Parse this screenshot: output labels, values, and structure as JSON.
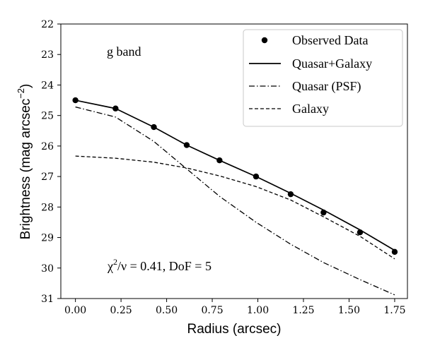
{
  "chart_data": {
    "type": "line",
    "xlabel": "Radius (arcsec)",
    "ylabel_main": "Brightness (mag arcsec",
    "ylabel_exp": "−2",
    "ylabel_close": ")",
    "xlim": [
      -0.08,
      1.82
    ],
    "ylim": [
      31,
      22
    ],
    "y_inverted": true,
    "x_ticks": [
      "0.00",
      "0.25",
      "0.50",
      "0.75",
      "1.00",
      "1.25",
      "1.50",
      "1.75"
    ],
    "x_tick_values": [
      0.0,
      0.25,
      0.5,
      0.75,
      1.0,
      1.25,
      1.5,
      1.75
    ],
    "y_ticks": [
      "22",
      "23",
      "24",
      "25",
      "26",
      "27",
      "28",
      "29",
      "30",
      "31"
    ],
    "y_tick_values": [
      22,
      23,
      24,
      25,
      26,
      27,
      28,
      29,
      30,
      31
    ],
    "band_label": "g band",
    "fit_stat": {
      "chi": "χ",
      "exp": "2",
      "rest": "/ν = 0.41, DoF = 5"
    },
    "legend_position": "upper right",
    "series": [
      {
        "name": "Observed Data",
        "style": "points",
        "x": [
          0.0,
          0.22,
          0.43,
          0.61,
          0.79,
          0.99,
          1.18,
          1.36,
          1.56,
          1.75
        ],
        "y": [
          24.5,
          24.77,
          25.38,
          25.97,
          26.47,
          27.0,
          27.58,
          28.18,
          28.83,
          29.47
        ]
      },
      {
        "name": "Quasar+Galaxy",
        "style": "solid",
        "x": [
          0.0,
          0.22,
          0.43,
          0.61,
          0.79,
          0.99,
          1.18,
          1.36,
          1.56,
          1.75
        ],
        "y": [
          24.5,
          24.77,
          25.38,
          25.97,
          26.47,
          27.0,
          27.55,
          28.1,
          28.75,
          29.42
        ]
      },
      {
        "name": "Quasar (PSF)",
        "style": "dashdot",
        "x": [
          0.0,
          0.22,
          0.43,
          0.61,
          0.79,
          0.99,
          1.18,
          1.36,
          1.56,
          1.75
        ],
        "y": [
          24.72,
          25.05,
          25.85,
          26.75,
          27.65,
          28.5,
          29.22,
          29.82,
          30.38,
          30.88
        ]
      },
      {
        "name": "Galaxy",
        "style": "dashed",
        "x": [
          0.0,
          0.22,
          0.43,
          0.61,
          0.79,
          0.99,
          1.18,
          1.36,
          1.56,
          1.75
        ],
        "y": [
          26.33,
          26.4,
          26.53,
          26.72,
          26.98,
          27.33,
          27.77,
          28.32,
          28.96,
          29.7
        ]
      }
    ]
  }
}
